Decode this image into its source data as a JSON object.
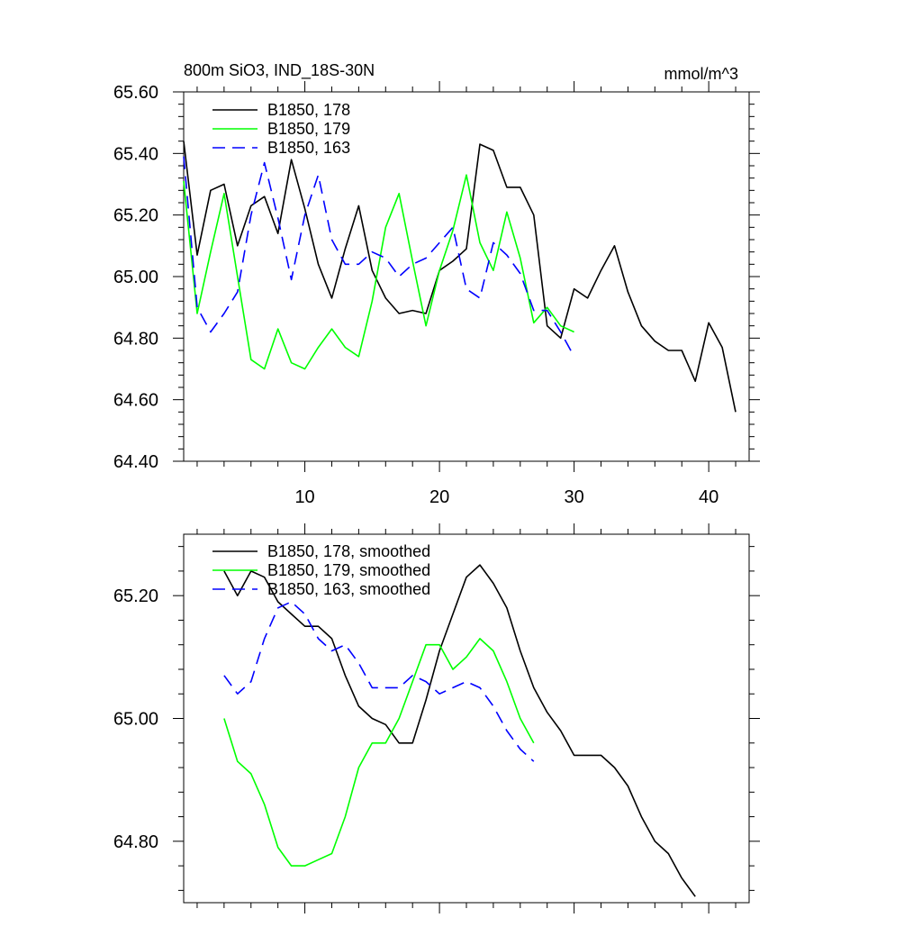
{
  "chart_data": [
    {
      "type": "line",
      "title": "800m SiO3, IND_18S-30N",
      "units_label": "mmol/m^3",
      "xlabel": "",
      "ylabel": "",
      "xlim": [
        1,
        43
      ],
      "ylim": [
        64.4,
        65.6
      ],
      "x_ticks": [
        10,
        20,
        30,
        40
      ],
      "x_tick_labels": [
        "10",
        "20",
        "30",
        "40"
      ],
      "y_ticks": [
        64.4,
        64.6,
        64.8,
        65.0,
        65.2,
        65.4,
        65.6
      ],
      "y_tick_labels": [
        "64.40",
        "64.60",
        "64.80",
        "65.00",
        "65.20",
        "65.40",
        "65.60"
      ],
      "legend_position": "top-left",
      "grid": false,
      "series": [
        {
          "name": "B1850, 178",
          "color": "#000000",
          "dash": "solid",
          "x": [
            1,
            2,
            3,
            4,
            5,
            6,
            7,
            8,
            9,
            10,
            11,
            12,
            13,
            14,
            15,
            16,
            17,
            18,
            19,
            20,
            21,
            22,
            23,
            24,
            25,
            26,
            27,
            28,
            29,
            30,
            31,
            32,
            33,
            34,
            35,
            36,
            37,
            38,
            39,
            40,
            41,
            42
          ],
          "values": [
            65.44,
            65.07,
            65.28,
            65.3,
            65.1,
            65.23,
            65.26,
            65.14,
            65.38,
            65.22,
            65.04,
            64.93,
            65.09,
            65.23,
            65.02,
            64.93,
            64.88,
            64.89,
            64.88,
            65.02,
            65.05,
            65.09,
            65.43,
            65.41,
            65.29,
            65.29,
            65.2,
            64.84,
            64.8,
            64.96,
            64.93,
            65.02,
            65.1,
            64.95,
            64.84,
            64.79,
            64.76,
            64.76,
            64.66,
            64.85,
            64.77,
            64.56
          ]
        },
        {
          "name": "B1850, 179",
          "color": "#00ff00",
          "dash": "solid",
          "x": [
            1,
            2,
            3,
            4,
            5,
            6,
            7,
            8,
            9,
            10,
            11,
            12,
            13,
            14,
            15,
            16,
            17,
            18,
            19,
            20,
            21,
            22,
            23,
            24,
            25,
            26,
            27,
            28,
            29,
            30
          ],
          "values": [
            65.31,
            64.88,
            65.08,
            65.27,
            65.0,
            64.73,
            64.7,
            64.83,
            64.72,
            64.7,
            64.77,
            64.83,
            64.77,
            64.74,
            64.92,
            65.16,
            65.27,
            65.05,
            64.84,
            65.02,
            65.15,
            65.33,
            65.11,
            65.02,
            65.21,
            65.06,
            64.85,
            64.9,
            64.84,
            64.82
          ]
        },
        {
          "name": "B1850, 163",
          "color": "#0000ff",
          "dash": "dashed",
          "x": [
            1,
            2,
            3,
            4,
            5,
            6,
            7,
            8,
            9,
            10,
            11,
            12,
            13,
            14,
            15,
            16,
            17,
            18,
            19,
            20,
            21,
            22,
            23,
            24,
            25,
            26,
            27,
            28,
            29,
            30
          ],
          "values": [
            65.39,
            64.9,
            64.82,
            64.88,
            64.95,
            65.2,
            65.37,
            65.19,
            64.99,
            65.2,
            65.33,
            65.12,
            65.04,
            65.04,
            65.08,
            65.06,
            65.0,
            65.04,
            65.06,
            65.11,
            65.16,
            64.96,
            64.93,
            65.11,
            65.07,
            65.01,
            64.89,
            64.89,
            64.82,
            64.74
          ]
        }
      ]
    },
    {
      "type": "line",
      "title": "",
      "xlabel": "",
      "ylabel": "",
      "xlim": [
        1,
        43
      ],
      "ylim": [
        64.7,
        65.3
      ],
      "x_ticks": [
        10,
        20,
        30,
        40
      ],
      "x_tick_labels": [],
      "y_ticks": [
        64.8,
        65.0,
        65.2
      ],
      "y_tick_labels": [
        "64.80",
        "65.00",
        "65.20"
      ],
      "legend_position": "top-left",
      "grid": false,
      "series": [
        {
          "name": "B1850, 178, smoothed",
          "color": "#000000",
          "dash": "solid",
          "x": [
            4,
            5,
            6,
            7,
            8,
            9,
            10,
            11,
            12,
            13,
            14,
            15,
            16,
            17,
            18,
            19,
            20,
            21,
            22,
            23,
            24,
            25,
            26,
            27,
            28,
            29,
            30,
            31,
            32,
            33,
            34,
            35,
            36,
            37,
            38,
            39
          ],
          "values": [
            65.24,
            65.2,
            65.24,
            65.23,
            65.19,
            65.17,
            65.15,
            65.15,
            65.13,
            65.07,
            65.02,
            65.0,
            64.99,
            64.96,
            64.96,
            65.03,
            65.11,
            65.17,
            65.23,
            65.25,
            65.22,
            65.18,
            65.11,
            65.05,
            65.01,
            64.98,
            64.94,
            64.94,
            64.94,
            64.92,
            64.89,
            64.84,
            64.8,
            64.78,
            64.74,
            64.71
          ]
        },
        {
          "name": "B1850, 179, smoothed",
          "color": "#00ff00",
          "dash": "solid",
          "x": [
            4,
            5,
            6,
            7,
            8,
            9,
            10,
            11,
            12,
            13,
            14,
            15,
            16,
            17,
            18,
            19,
            20,
            21,
            22,
            23,
            24,
            25,
            26,
            27
          ],
          "values": [
            65.0,
            64.93,
            64.91,
            64.86,
            64.79,
            64.76,
            64.76,
            64.77,
            64.78,
            64.84,
            64.92,
            64.96,
            64.96,
            65.0,
            65.06,
            65.12,
            65.12,
            65.08,
            65.1,
            65.13,
            65.11,
            65.06,
            65.0,
            64.96
          ]
        },
        {
          "name": "B1850, 163, smoothed",
          "color": "#0000ff",
          "dash": "dashed",
          "x": [
            4,
            5,
            6,
            7,
            8,
            9,
            10,
            11,
            12,
            13,
            14,
            15,
            16,
            17,
            18,
            19,
            20,
            21,
            22,
            23,
            24,
            25,
            26,
            27
          ],
          "values": [
            65.07,
            65.04,
            65.06,
            65.13,
            65.18,
            65.19,
            65.17,
            65.13,
            65.11,
            65.12,
            65.09,
            65.05,
            65.05,
            65.05,
            65.07,
            65.06,
            65.04,
            65.05,
            65.06,
            65.05,
            65.02,
            64.98,
            64.95,
            64.93
          ]
        }
      ]
    }
  ]
}
